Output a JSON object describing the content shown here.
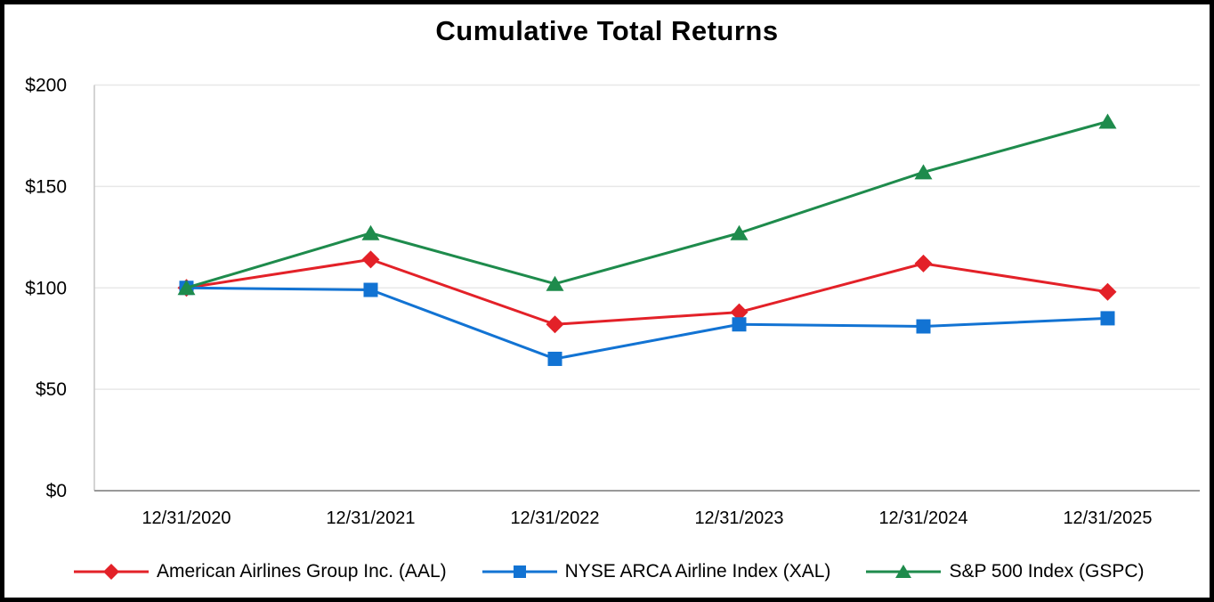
{
  "chart_data": {
    "type": "line",
    "title": "Cumulative Total Returns",
    "categories": [
      "12/31/2020",
      "12/31/2021",
      "12/31/2022",
      "12/31/2023",
      "12/31/2024",
      "12/31/2025"
    ],
    "series": [
      {
        "id": "aal",
        "name": "American Airlines Group Inc. (AAL)",
        "marker": "diamond",
        "color": "#e32128",
        "values": [
          100,
          114,
          82,
          88,
          112,
          98
        ]
      },
      {
        "id": "xal",
        "name": "NYSE ARCA Airline Index (XAL)",
        "marker": "square",
        "color": "#1273d3",
        "values": [
          100,
          99,
          65,
          82,
          81,
          85
        ]
      },
      {
        "id": "gspc",
        "name": "S&P 500 Index (GSPC)",
        "marker": "triangle",
        "color": "#1e8b4c",
        "values": [
          100,
          127,
          102,
          127,
          157,
          182
        ]
      }
    ],
    "xlabel": "",
    "ylabel": "",
    "ylim": [
      0,
      200
    ],
    "ytick_step": 50,
    "ytick_labels": [
      "$0",
      "$50",
      "$100",
      "$150",
      "$200"
    ],
    "grid": true,
    "legend_position": "bottom"
  },
  "style_colors": {
    "gridline": "#e8e8e8",
    "plot_left_border": "#c6c6c6",
    "x_axis_line": "#999999",
    "frame_border": "#000000",
    "title_color": "#000000"
  }
}
